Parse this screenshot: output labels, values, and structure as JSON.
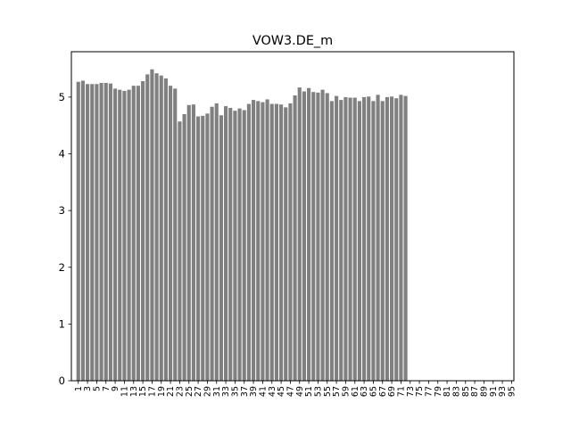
{
  "chart_data": {
    "type": "bar",
    "title": "VOW3.DE_m",
    "xlabel": "",
    "ylabel": "",
    "bar_color": "#808080",
    "ylim": [
      0,
      5.8
    ],
    "yticks": [
      0,
      1,
      2,
      3,
      4,
      5
    ],
    "xlim": [
      -0.5,
      95.5
    ],
    "xticks": [
      1,
      3,
      5,
      7,
      9,
      11,
      13,
      15,
      17,
      19,
      21,
      23,
      25,
      27,
      29,
      31,
      33,
      35,
      37,
      39,
      41,
      43,
      45,
      47,
      49,
      51,
      53,
      55,
      57,
      59,
      61,
      63,
      65,
      67,
      69,
      71,
      73,
      75,
      77,
      79,
      81,
      83,
      85,
      87,
      89,
      91,
      93,
      95
    ],
    "xtick_labels": [
      "1",
      "3",
      "5",
      "7",
      "9",
      "11",
      "13",
      "15",
      "17",
      "19",
      "21",
      "23",
      "25",
      "27",
      "29",
      "31",
      "33",
      "35",
      "37",
      "39",
      "41",
      "43",
      "45",
      "47",
      "49",
      "51",
      "53",
      "55",
      "57",
      "59",
      "61",
      "63",
      "65",
      "67",
      "69",
      "71",
      "73",
      "75",
      "77",
      "79",
      "81",
      "83",
      "85",
      "87",
      "89",
      "91",
      "93",
      "95"
    ],
    "x": [
      1,
      2,
      3,
      4,
      5,
      6,
      7,
      8,
      9,
      10,
      11,
      12,
      13,
      14,
      15,
      16,
      17,
      18,
      19,
      20,
      21,
      22,
      23,
      24,
      25,
      26,
      27,
      28,
      29,
      30,
      31,
      32,
      33,
      34,
      35,
      36,
      37,
      38,
      39,
      40,
      41,
      42,
      43,
      44,
      45,
      46,
      47,
      48,
      49,
      50,
      51,
      52,
      53,
      54,
      55,
      56,
      57,
      58,
      59,
      60,
      61,
      62,
      63,
      64,
      65,
      66,
      67,
      68,
      69,
      70,
      71,
      72
    ],
    "values": [
      5.27,
      5.29,
      5.23,
      5.23,
      5.23,
      5.25,
      5.25,
      5.24,
      5.15,
      5.13,
      5.11,
      5.13,
      5.2,
      5.2,
      5.28,
      5.4,
      5.49,
      5.42,
      5.38,
      5.33,
      5.2,
      5.15,
      4.57,
      4.7,
      4.86,
      4.87,
      4.66,
      4.67,
      4.71,
      4.83,
      4.89,
      4.68,
      4.84,
      4.81,
      4.76,
      4.8,
      4.77,
      4.88,
      4.95,
      4.93,
      4.91,
      4.96,
      4.88,
      4.88,
      4.87,
      4.82,
      4.89,
      5.03,
      5.17,
      5.1,
      5.16,
      5.09,
      5.08,
      5.13,
      5.07,
      4.93,
      5.02,
      4.95,
      5.0,
      4.99,
      4.99,
      4.93,
      5.0,
      5.01,
      4.93,
      5.04,
      4.93,
      5.0,
      5.01,
      4.98,
      5.04,
      5.02
    ]
  }
}
